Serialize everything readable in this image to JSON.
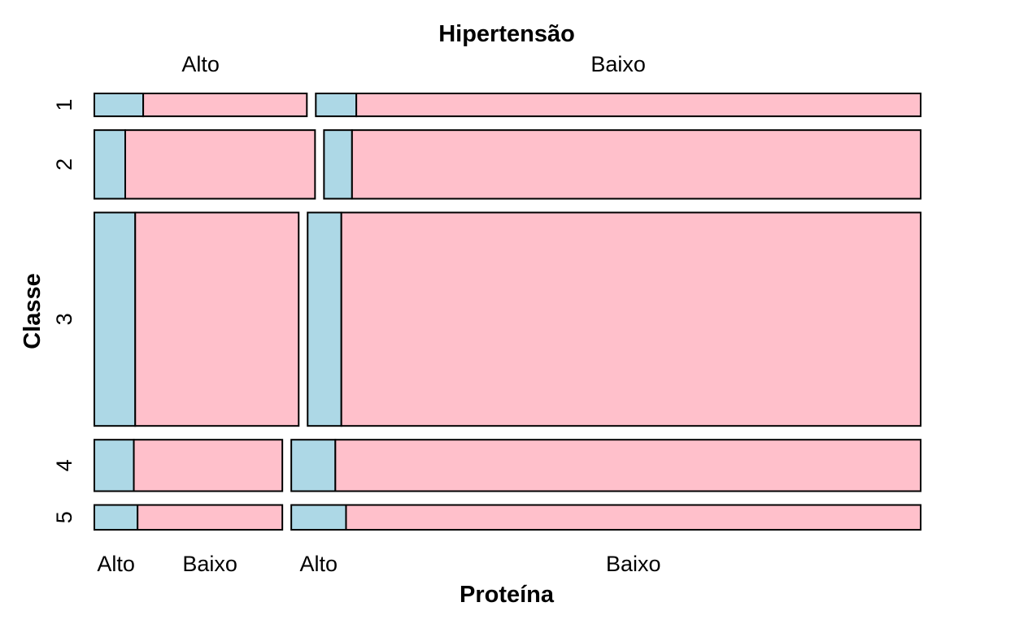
{
  "chart_data": {
    "type": "mosaic",
    "title": "Hipertensão",
    "xlabel": "Proteína",
    "ylabel": "Classe",
    "top_categories": [
      "Alto",
      "Baixo"
    ],
    "row_categories": [
      "1",
      "2",
      "3",
      "4",
      "5"
    ],
    "bottom_tick_labels": [
      "Alto",
      "Baixo",
      "Alto",
      "Baixo"
    ],
    "fill_categories": [
      "Alto",
      "Baixo"
    ],
    "colors": {
      "Alto": "#add8e6",
      "Baixo": "#ffc0cb",
      "border": "#000000"
    },
    "row_fractions": [
      0.06,
      0.18,
      0.56,
      0.135,
      0.065
    ],
    "cells": [
      {
        "classe": "1",
        "hipertensao_alto_fraction": 0.26,
        "proteina_alto_share": [
          0.23,
          0.067
        ]
      },
      {
        "classe": "2",
        "hipertensao_alto_fraction": 0.27,
        "proteina_alto_share": [
          0.14,
          0.047
        ]
      },
      {
        "classe": "3",
        "hipertensao_alto_fraction": 0.25,
        "proteina_alto_share": [
          0.2,
          0.055
        ]
      },
      {
        "classe": "4",
        "hipertensao_alto_fraction": 0.23,
        "proteina_alto_share": [
          0.21,
          0.07
        ]
      },
      {
        "classe": "5",
        "hipertensao_alto_fraction": 0.23,
        "proteina_alto_share": [
          0.23,
          0.087
        ]
      }
    ]
  }
}
